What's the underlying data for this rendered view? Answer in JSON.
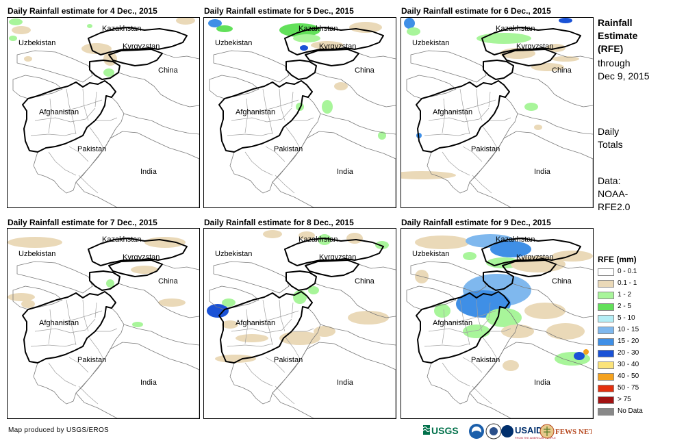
{
  "panels": [
    {
      "title": "Daily Rainfall estimate for 4 Dec., 2015"
    },
    {
      "title": "Daily Rainfall estimate for 5 Dec., 2015"
    },
    {
      "title": "Daily Rainfall estimate for 6 Dec., 2015"
    },
    {
      "title": "Daily Rainfall estimate for 7 Dec., 2015"
    },
    {
      "title": "Daily Rainfall estimate for 8 Dec., 2015"
    },
    {
      "title": "Daily Rainfall estimate for 9 Dec., 2015"
    }
  ],
  "places": {
    "kazakhstan": "Kazakhstan",
    "uzbekistan": "Uzbekistan",
    "kyrgyzstan": "Kyrgyzstan",
    "china": "China",
    "afghanistan": "Afghanistan",
    "pakistan": "Pakistan",
    "india": "India"
  },
  "side": {
    "title_lines": [
      "Rainfall",
      "Estimate",
      "(RFE)"
    ],
    "through": "through",
    "date": "Dec 9, 2015",
    "daily": "Daily",
    "totals": "Totals",
    "data_label": "Data:",
    "data_src1": "NOAA-",
    "data_src2": "RFE2.0"
  },
  "legend": {
    "title": "RFE (mm)",
    "items": [
      {
        "label": "0 - 0.1",
        "color": "#ffffff"
      },
      {
        "label": "0.1 - 1",
        "color": "#ead9b8"
      },
      {
        "label": "1 - 2",
        "color": "#a8f59a"
      },
      {
        "label": "2 - 5",
        "color": "#62e05a"
      },
      {
        "label": "5 - 10",
        "color": "#b4eef6"
      },
      {
        "label": "10 - 15",
        "color": "#7fb8ee"
      },
      {
        "label": "15 - 20",
        "color": "#3f8fe6"
      },
      {
        "label": "20 - 30",
        "color": "#1a52d6"
      },
      {
        "label": "30 - 40",
        "color": "#fbe37a"
      },
      {
        "label": "40 - 50",
        "color": "#f5a21e"
      },
      {
        "label": "50 - 75",
        "color": "#e4300f"
      },
      {
        "label": "> 75",
        "color": "#a21212"
      },
      {
        "label": "No Data",
        "color": "#888888"
      }
    ]
  },
  "credit": "Map produced by USGS/EROS",
  "logos": {
    "usgs": "USGS",
    "usaid": "USAID",
    "usaid_sub": "FROM THE AMERICAN PEOPLE",
    "fewsnet": "FEWS NET",
    "usgs_color": "#00704a",
    "noaa_color": "#1b5fab",
    "usaid_color": "#002f6c",
    "fews_color": "#b5451b"
  }
}
